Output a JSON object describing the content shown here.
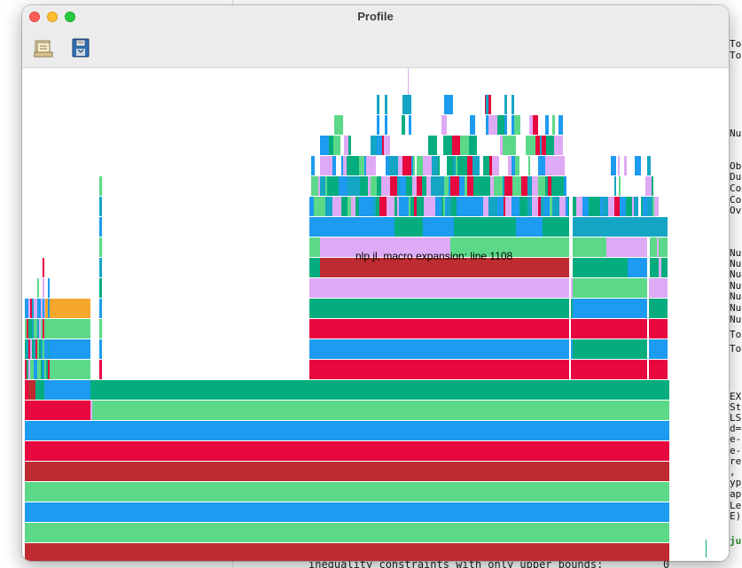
{
  "window": {
    "title": "Profile"
  },
  "toolbar": {
    "open_icon": "open-file-icon",
    "save_icon": "save-disk-icon"
  },
  "tooltip": {
    "text": "nlp.jl, macro expansion: line 1108"
  },
  "colors": {
    "green": "#05ad7e",
    "light_green": "#5bd988",
    "blue": "#1c9bf0",
    "crimson": "#e6083f",
    "dark_red": "#be2b30",
    "lavender": "#deaaf5",
    "teal": "#15a5c4",
    "orange": "#f5a72b"
  },
  "terminal": {
    "right_fragments": [
      "To",
      "To",
      "Nu",
      "Ob",
      "Du",
      "Co",
      "Co",
      "Ov",
      "Nu",
      "Nu",
      "Nu",
      "Nu",
      "Nu",
      "Nu",
      "Nu",
      "To",
      "To",
      "EX",
      "St",
      "LS",
      "d=",
      "e-",
      "e-b",
      "re",
      ",",
      "yp",
      "ap",
      "Le",
      "E)",
      "ju"
    ],
    "bottom_line": "inequality constraints with only upper bounds:",
    "bottom_value": "0"
  }
}
